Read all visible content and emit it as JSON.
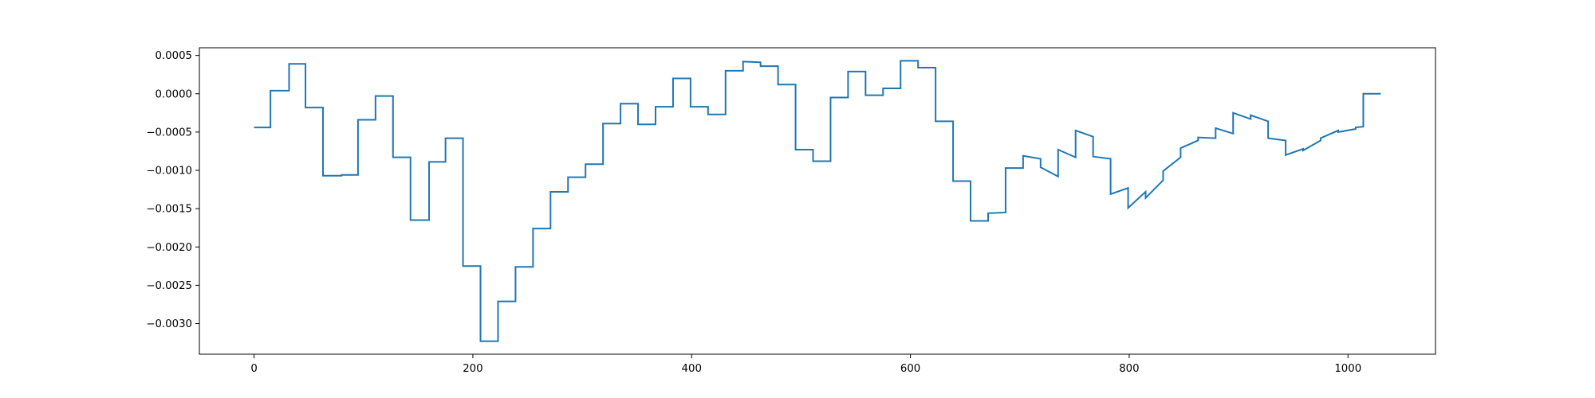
{
  "chart_data": {
    "type": "line",
    "title": "",
    "xlabel": "",
    "ylabel": "",
    "xlim": [
      -50,
      1080
    ],
    "ylim": [
      -0.0034,
      0.0006
    ],
    "x_ticks": [
      0,
      200,
      400,
      600,
      800,
      1000
    ],
    "x_tick_labels": [
      "0",
      "200",
      "400",
      "600",
      "800",
      "1000"
    ],
    "y_ticks": [
      0.0005,
      0.0,
      -0.0005,
      -0.001,
      -0.0015,
      -0.002,
      -0.0025,
      -0.003
    ],
    "y_tick_labels": [
      "0.0005",
      "0.0000",
      "−0.0005",
      "−0.0010",
      "−0.0015",
      "−0.0020",
      "−0.0025",
      "−0.0030"
    ],
    "grid": false,
    "legend": "none",
    "series": [
      {
        "color": "#1f77b4",
        "step_segments": [
          [
            0,
            15,
            -0.00044,
            -0.00044
          ],
          [
            15,
            32,
            4e-05,
            4e-05
          ],
          [
            32,
            47,
            0.00039,
            0.00039
          ],
          [
            47,
            63,
            -0.00018,
            -0.00018
          ],
          [
            63,
            80,
            -0.00107,
            -0.00107
          ],
          [
            80,
            95,
            -0.00106,
            -0.00106
          ],
          [
            95,
            111,
            -0.00034,
            -0.00034
          ],
          [
            111,
            127,
            -3e-05,
            -3e-05
          ],
          [
            127,
            143,
            -0.00083,
            -0.00083
          ],
          [
            143,
            160,
            -0.00165,
            -0.00165
          ],
          [
            160,
            175,
            -0.00089,
            -0.00089
          ],
          [
            175,
            191,
            -0.00058,
            -0.00058
          ],
          [
            191,
            207,
            -0.00225,
            -0.00225
          ],
          [
            207,
            223,
            -0.00323,
            -0.00323
          ],
          [
            223,
            239,
            -0.00271,
            -0.00271
          ],
          [
            239,
            255,
            -0.00226,
            -0.00226
          ],
          [
            255,
            271,
            -0.00176,
            -0.00176
          ],
          [
            271,
            287,
            -0.00128,
            -0.00128
          ],
          [
            287,
            303,
            -0.00109,
            -0.00109
          ],
          [
            303,
            319,
            -0.00092,
            -0.00092
          ],
          [
            319,
            335,
            -0.00039,
            -0.00039
          ],
          [
            335,
            351,
            -0.00013,
            -0.00013
          ],
          [
            351,
            367,
            -0.0004,
            -0.0004
          ],
          [
            367,
            383,
            -0.00017,
            -0.00017
          ],
          [
            383,
            399,
            0.0002,
            0.0002
          ],
          [
            399,
            415,
            -0.00017,
            -0.00017
          ],
          [
            415,
            431,
            -0.00027,
            -0.00027
          ],
          [
            431,
            447,
            0.0003,
            0.0003
          ],
          [
            447,
            463,
            0.00042,
            0.00041
          ],
          [
            463,
            479,
            0.00036,
            0.00036
          ],
          [
            479,
            495,
            0.00012,
            0.00012
          ],
          [
            495,
            511,
            -0.00073,
            -0.00073
          ],
          [
            511,
            527,
            -0.00088,
            -0.00088
          ],
          [
            527,
            543,
            -5e-05,
            -5e-05
          ],
          [
            543,
            559,
            0.00029,
            0.00029
          ],
          [
            559,
            575,
            -2e-05,
            -2e-05
          ],
          [
            575,
            591,
            7e-05,
            7e-05
          ],
          [
            591,
            607,
            0.00043,
            0.00043
          ],
          [
            607,
            623,
            0.00034,
            0.00034
          ],
          [
            623,
            639,
            -0.00036,
            -0.00036
          ],
          [
            639,
            655,
            -0.00114,
            -0.00114
          ],
          [
            655,
            671,
            -0.00166,
            -0.00166
          ],
          [
            671,
            687,
            -0.00156,
            -0.00155
          ],
          [
            687,
            703,
            -0.00097,
            -0.00097
          ],
          [
            703,
            719,
            -0.00081,
            -0.00085
          ],
          [
            719,
            735,
            -0.00096,
            -0.00108
          ],
          [
            735,
            751,
            -0.00073,
            -0.00083
          ],
          [
            751,
            767,
            -0.00048,
            -0.00056
          ],
          [
            767,
            783,
            -0.00082,
            -0.00085
          ],
          [
            783,
            799,
            -0.00131,
            -0.00123
          ],
          [
            799,
            815,
            -0.00149,
            -0.00128
          ],
          [
            815,
            831,
            -0.00136,
            -0.00113
          ],
          [
            831,
            847,
            -0.00101,
            -0.00083
          ],
          [
            847,
            863,
            -0.00071,
            -0.00061
          ],
          [
            863,
            879,
            -0.00057,
            -0.00058
          ],
          [
            879,
            895,
            -0.00045,
            -0.00052
          ],
          [
            895,
            911,
            -0.00025,
            -0.00033
          ],
          [
            911,
            927,
            -0.00028,
            -0.00036
          ],
          [
            927,
            943,
            -0.00058,
            -0.00061
          ],
          [
            943,
            959,
            -0.0008,
            -0.00072
          ],
          [
            959,
            975,
            -0.00074,
            -0.00061
          ],
          [
            975,
            991,
            -0.00058,
            -0.00048
          ],
          [
            991,
            1007,
            -0.0005,
            -0.00046
          ],
          [
            1007,
            1014,
            -0.00044,
            -0.00043
          ],
          [
            1014,
            1030,
            0.0,
            0.0
          ]
        ]
      }
    ]
  }
}
